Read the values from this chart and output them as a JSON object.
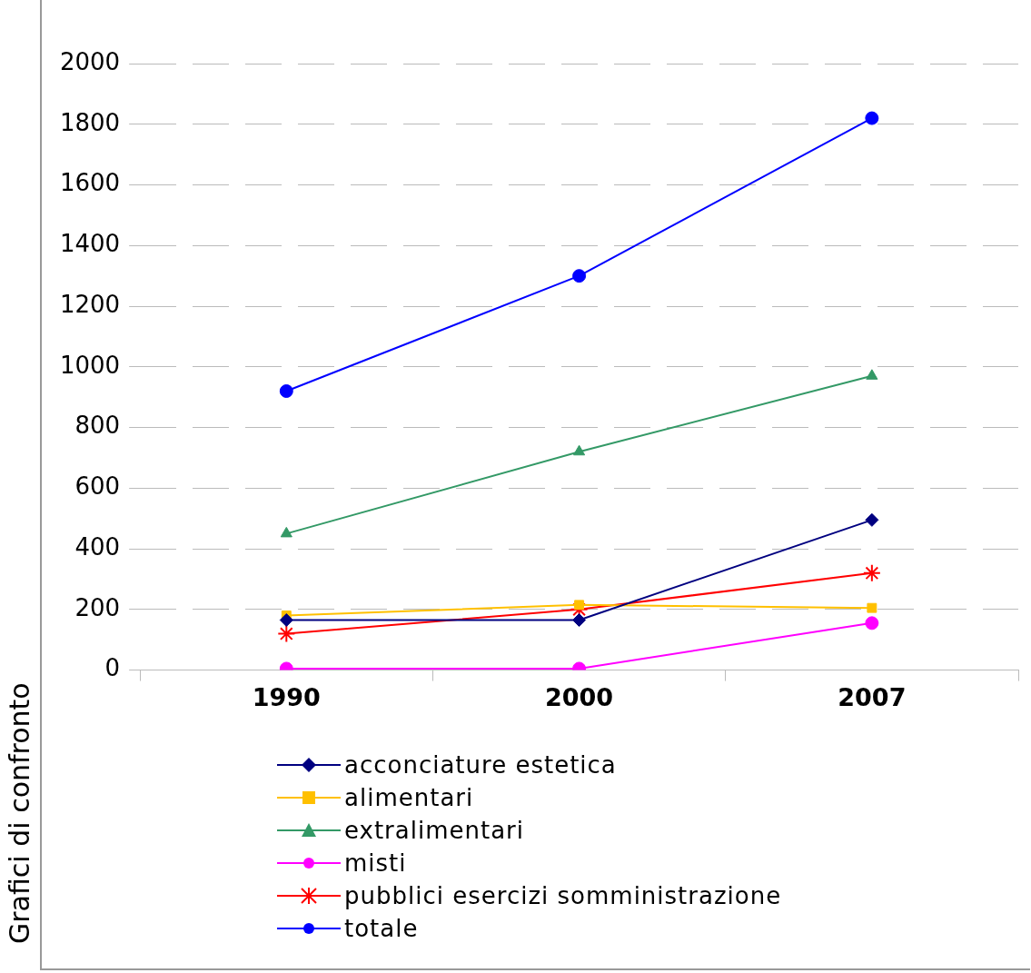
{
  "chart_data": {
    "type": "line",
    "ylabel": "Grafici di confronto",
    "categories": [
      "1990",
      "2000",
      "2007"
    ],
    "ylim": [
      0,
      2000
    ],
    "yticks": [
      0,
      200,
      400,
      600,
      800,
      1000,
      1200,
      1400,
      1600,
      1800,
      2000
    ],
    "grid": "y",
    "legend": "bottom",
    "series": [
      {
        "name": "acconciature estetica",
        "color": "#000080",
        "marker": "diamond",
        "values": [
          165,
          165,
          495
        ]
      },
      {
        "name": "alimentari",
        "color": "#ffc000",
        "marker": "square",
        "values": [
          180,
          215,
          205
        ]
      },
      {
        "name": "extralimentari",
        "color": "#339966",
        "marker": "triangle",
        "values": [
          450,
          720,
          970
        ]
      },
      {
        "name": "misti",
        "color": "#ff00ff",
        "marker": "circle",
        "values": [
          5,
          5,
          155
        ]
      },
      {
        "name": "pubblici esercizi somministrazione",
        "color": "#ff0000",
        "marker": "cross",
        "values": [
          120,
          200,
          320
        ]
      },
      {
        "name": "totale",
        "color": "#0000ff",
        "marker": "circle",
        "values": [
          920,
          1300,
          1820
        ]
      }
    ]
  }
}
